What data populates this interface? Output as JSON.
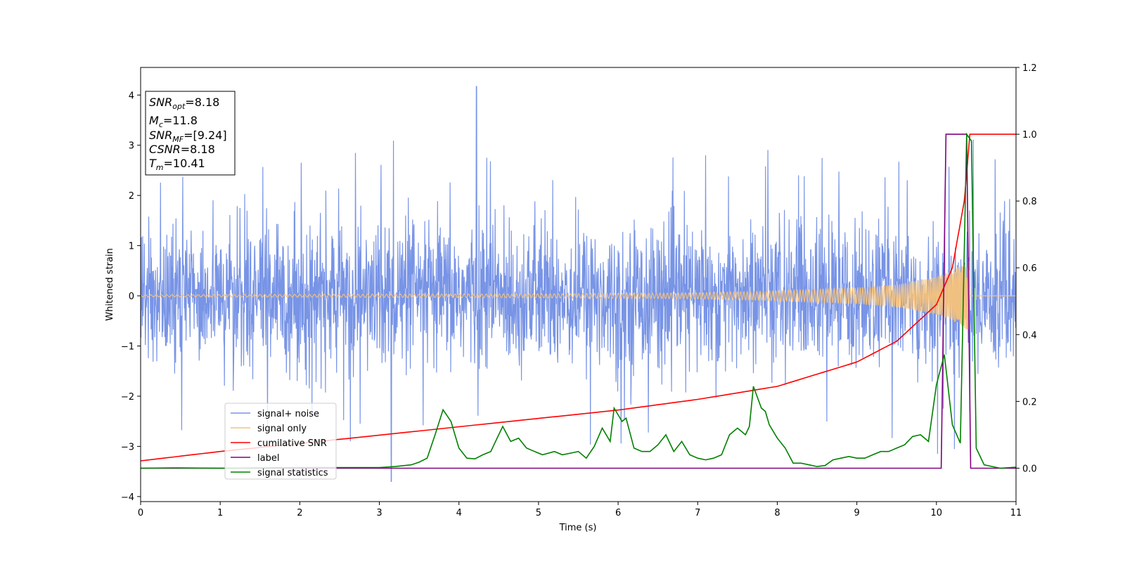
{
  "chart_data": {
    "type": "line",
    "xlabel": "Time (s)",
    "ylabel": "Whitened strain",
    "xlim": [
      0,
      11
    ],
    "ylim": [
      -4.1,
      4.55
    ],
    "y2lim": [
      -0.1,
      1.2
    ],
    "xticks": [
      "0",
      "1",
      "2",
      "3",
      "4",
      "5",
      "6",
      "7",
      "8",
      "9",
      "10",
      "11"
    ],
    "yticks": [
      "−4",
      "−3",
      "−2",
      "−1",
      "0",
      "1",
      "2",
      "3",
      "4"
    ],
    "y2ticks": [
      "0.0",
      "0.2",
      "0.4",
      "0.6",
      "0.8",
      "1.0",
      "1.2"
    ],
    "grid": false,
    "legend_position": "lower-left",
    "annotation": {
      "lines": [
        {
          "sym": "SNR",
          "sub": "opt",
          "rest": "=8.18"
        },
        {
          "sym": "M",
          "sub": "c",
          "rest": "=11.8"
        },
        {
          "sym": "SNR",
          "sub": "MF",
          "rest": "=[9.24]"
        },
        {
          "sym": "CSNR",
          "sub": "",
          "rest": "=8.18"
        },
        {
          "sym": "T",
          "sub": "m",
          "rest": "=10.41"
        }
      ]
    },
    "series": [
      {
        "name": "signal+ noise",
        "color": "#7894e6",
        "axis": "left",
        "noise_sigma": 0.72,
        "spike_max": 4.17,
        "spike_min": -3.7
      },
      {
        "name": "signal only",
        "color": "#f5c27a",
        "axis": "left",
        "envelope": [
          [
            0,
            0.02
          ],
          [
            5,
            0.04
          ],
          [
            7,
            0.06
          ],
          [
            8,
            0.1
          ],
          [
            9,
            0.16
          ],
          [
            9.5,
            0.22
          ],
          [
            10,
            0.38
          ],
          [
            10.2,
            0.5
          ],
          [
            10.41,
            0.7
          ],
          [
            10.42,
            0
          ],
          [
            11,
            0
          ]
        ]
      },
      {
        "name": "cumilative SNR",
        "color": "#ff0000",
        "axis": "right",
        "points": [
          [
            0,
            0.022
          ],
          [
            1,
            0.05
          ],
          [
            2,
            0.074
          ],
          [
            3,
            0.099
          ],
          [
            4,
            0.124
          ],
          [
            5,
            0.149
          ],
          [
            6,
            0.174
          ],
          [
            7,
            0.206
          ],
          [
            8,
            0.245
          ],
          [
            9,
            0.318
          ],
          [
            9.5,
            0.38
          ],
          [
            10,
            0.49
          ],
          [
            10.2,
            0.6
          ],
          [
            10.35,
            0.8
          ],
          [
            10.41,
            0.97
          ],
          [
            10.42,
            1.0
          ],
          [
            11,
            1.0
          ]
        ]
      },
      {
        "name": "label",
        "color": "#800080",
        "axis": "right",
        "points": [
          [
            0,
            0.0
          ],
          [
            10.06,
            0.0
          ],
          [
            10.12,
            1.0
          ],
          [
            10.38,
            1.0
          ],
          [
            10.43,
            0.0
          ],
          [
            11,
            0.0
          ]
        ]
      },
      {
        "name": "signal statistics",
        "color": "#008000",
        "axis": "right",
        "points": [
          [
            0,
            0.0
          ],
          [
            0.4,
            0.001
          ],
          [
            1,
            0.0
          ],
          [
            2,
            0.002
          ],
          [
            2.5,
            0.002
          ],
          [
            3,
            0.002
          ],
          [
            3.2,
            0.005
          ],
          [
            3.4,
            0.01
          ],
          [
            3.5,
            0.018
          ],
          [
            3.6,
            0.03
          ],
          [
            3.7,
            0.1
          ],
          [
            3.8,
            0.175
          ],
          [
            3.9,
            0.14
          ],
          [
            4.0,
            0.06
          ],
          [
            4.1,
            0.03
          ],
          [
            4.2,
            0.028
          ],
          [
            4.3,
            0.04
          ],
          [
            4.4,
            0.05
          ],
          [
            4.5,
            0.1
          ],
          [
            4.55,
            0.125
          ],
          [
            4.65,
            0.08
          ],
          [
            4.75,
            0.09
          ],
          [
            4.85,
            0.06
          ],
          [
            4.95,
            0.05
          ],
          [
            5.05,
            0.04
          ],
          [
            5.2,
            0.05
          ],
          [
            5.3,
            0.04
          ],
          [
            5.4,
            0.045
          ],
          [
            5.5,
            0.05
          ],
          [
            5.6,
            0.03
          ],
          [
            5.7,
            0.065
          ],
          [
            5.8,
            0.12
          ],
          [
            5.9,
            0.08
          ],
          [
            5.95,
            0.18
          ],
          [
            6.05,
            0.14
          ],
          [
            6.1,
            0.15
          ],
          [
            6.2,
            0.06
          ],
          [
            6.3,
            0.05
          ],
          [
            6.4,
            0.05
          ],
          [
            6.5,
            0.07
          ],
          [
            6.6,
            0.1
          ],
          [
            6.7,
            0.05
          ],
          [
            6.8,
            0.08
          ],
          [
            6.9,
            0.04
          ],
          [
            7.0,
            0.03
          ],
          [
            7.1,
            0.025
          ],
          [
            7.2,
            0.03
          ],
          [
            7.3,
            0.04
          ],
          [
            7.4,
            0.1
          ],
          [
            7.5,
            0.12
          ],
          [
            7.6,
            0.1
          ],
          [
            7.65,
            0.125
          ],
          [
            7.7,
            0.245
          ],
          [
            7.8,
            0.18
          ],
          [
            7.85,
            0.17
          ],
          [
            7.9,
            0.13
          ],
          [
            8.0,
            0.09
          ],
          [
            8.1,
            0.06
          ],
          [
            8.2,
            0.015
          ],
          [
            8.3,
            0.015
          ],
          [
            8.4,
            0.01
          ],
          [
            8.5,
            0.005
          ],
          [
            8.6,
            0.008
          ],
          [
            8.7,
            0.025
          ],
          [
            8.8,
            0.03
          ],
          [
            8.9,
            0.035
          ],
          [
            9.0,
            0.03
          ],
          [
            9.1,
            0.03
          ],
          [
            9.2,
            0.04
          ],
          [
            9.3,
            0.05
          ],
          [
            9.4,
            0.05
          ],
          [
            9.5,
            0.06
          ],
          [
            9.6,
            0.07
          ],
          [
            9.7,
            0.095
          ],
          [
            9.8,
            0.1
          ],
          [
            9.9,
            0.08
          ],
          [
            10.0,
            0.25
          ],
          [
            10.1,
            0.34
          ],
          [
            10.2,
            0.13
          ],
          [
            10.3,
            0.075
          ],
          [
            10.38,
            1.0
          ],
          [
            10.44,
            0.98
          ],
          [
            10.5,
            0.06
          ],
          [
            10.6,
            0.01
          ],
          [
            10.8,
            0.0
          ],
          [
            11,
            0.003
          ]
        ]
      }
    ]
  }
}
